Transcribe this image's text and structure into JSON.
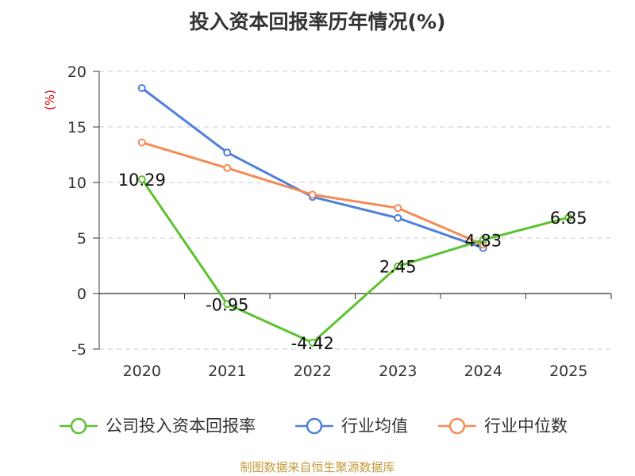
{
  "chart_data": {
    "type": "line",
    "title": "投入资本回报率历年情况(%)",
    "ylabel": "(%)",
    "categories": [
      "2020",
      "2021",
      "2022",
      "2023",
      "2024",
      "2025"
    ],
    "ylim": [
      -5,
      20
    ],
    "yticks": [
      "20",
      "15",
      "10",
      "5",
      "0",
      "-5"
    ],
    "grid": true,
    "legend_position": "bottom",
    "series": [
      {
        "name": "公司投入资本回报率",
        "color": "#5cc22f",
        "values": [
          10.29,
          -0.95,
          -4.42,
          2.45,
          4.83,
          6.85
        ],
        "labels": [
          "10.29",
          "-0.95",
          "-4.42",
          "2.45",
          "4.83",
          "6.85"
        ]
      },
      {
        "name": "行业均值",
        "color": "#4e7fdb",
        "values": [
          18.5,
          12.7,
          8.7,
          6.8,
          4.1,
          null
        ]
      },
      {
        "name": "行业中位数",
        "color": "#f38b55",
        "values": [
          13.6,
          11.3,
          8.9,
          7.7,
          4.4,
          null
        ]
      }
    ]
  },
  "source": "制图数据来自恒生聚源数据库"
}
